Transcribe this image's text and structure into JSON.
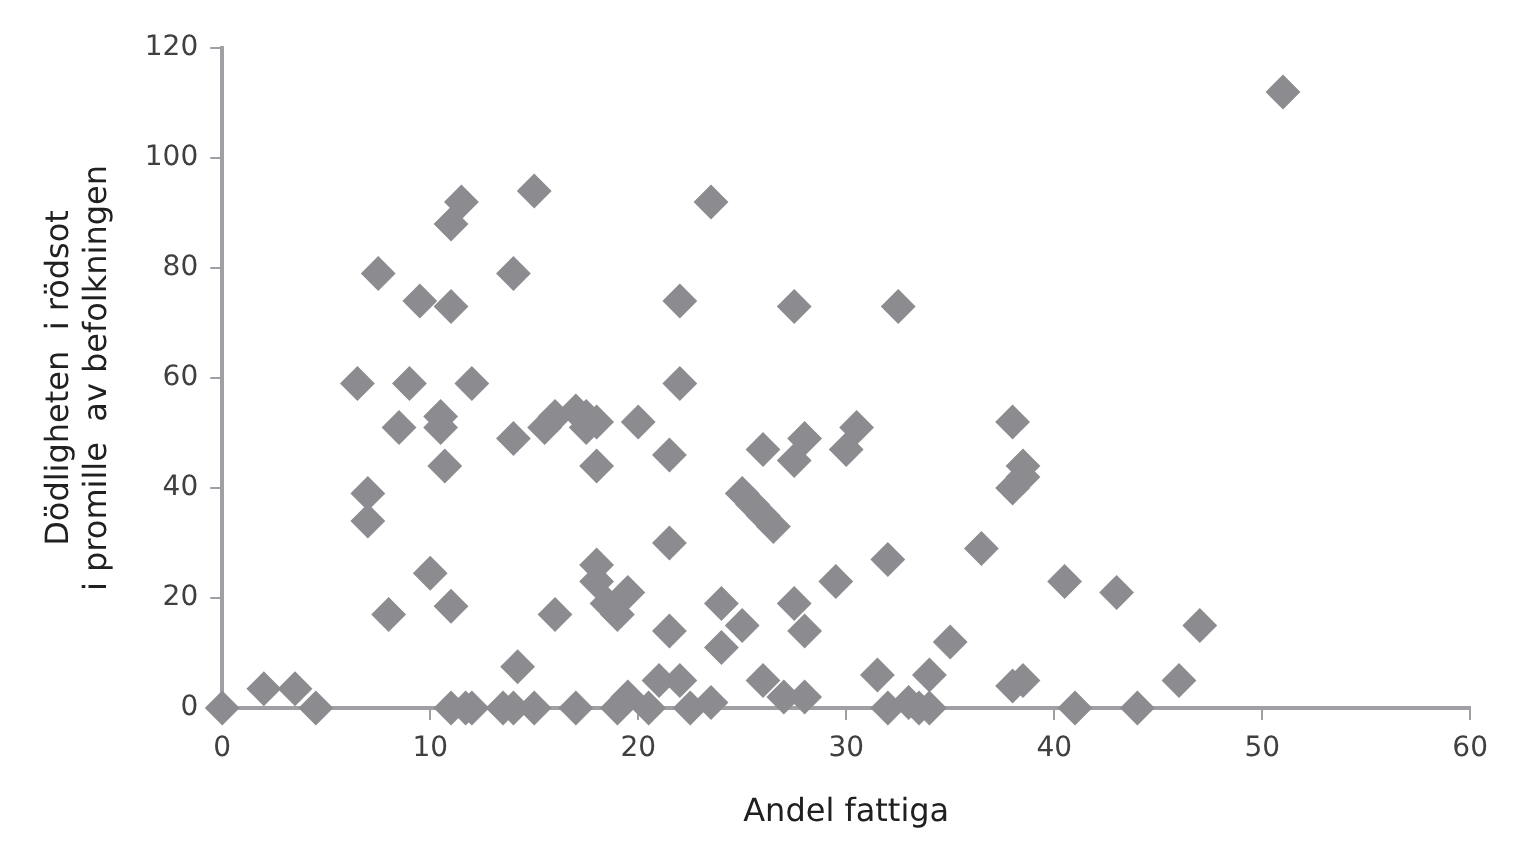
{
  "chart_data": {
    "type": "scatter",
    "xlabel": "Andel fattiga",
    "ylabel": "Dödligheten  i rödsot\ni promille  av befolkningen",
    "xlim": [
      0,
      60
    ],
    "xticks": [
      0,
      10,
      20,
      30,
      40,
      50,
      60
    ],
    "ylim": [
      0,
      120
    ],
    "yticks": [
      0,
      20,
      40,
      60,
      80,
      100,
      120
    ],
    "marker": "diamond",
    "legend": false,
    "series": [
      {
        "color": "#8c8c90",
        "x": [
          0,
          2,
          3.5,
          4.5,
          6.5,
          7,
          7,
          7.5,
          8,
          8.5,
          9,
          9.5,
          10,
          10.5,
          10.5,
          10.7,
          11,
          11,
          11,
          11,
          11.5,
          11.7,
          12,
          12,
          13.5,
          14,
          14,
          14.2,
          14,
          15,
          15,
          15.5,
          16,
          16,
          17,
          17,
          17.5,
          17.5,
          18,
          18,
          18,
          18,
          18.5,
          19,
          19,
          19.5,
          19.5,
          20,
          20.5,
          21,
          21.5,
          21.5,
          21.5,
          22,
          22,
          22,
          22.5,
          23.5,
          23.5,
          24,
          24,
          25,
          25,
          25.5,
          26,
          26,
          26,
          26.5,
          27,
          27.5,
          27.5,
          27.5,
          28,
          28,
          28,
          29.5,
          30,
          30.5,
          31.5,
          32,
          32,
          32.5,
          33,
          33.5,
          34,
          34,
          35,
          36.5,
          38,
          38,
          38,
          38.5,
          38.5,
          38.5,
          40.5,
          41,
          43,
          44,
          46,
          47,
          51
        ],
        "values": [
          0,
          3.5,
          3.5,
          0,
          59,
          39,
          34,
          79,
          17,
          51,
          59,
          74,
          24.5,
          51,
          53,
          44,
          88,
          73,
          18.5,
          0,
          92,
          0,
          59,
          0,
          0,
          79,
          49,
          7.5,
          0,
          94,
          0,
          51,
          17,
          53,
          0,
          54,
          51,
          53,
          52,
          44,
          26,
          23,
          19,
          0,
          17,
          2,
          21,
          52,
          0,
          5,
          46,
          30,
          14,
          74,
          59,
          5,
          0,
          92,
          1,
          11,
          19,
          15,
          39,
          37,
          47,
          5,
          35,
          33,
          2,
          19,
          45,
          73,
          14,
          49,
          2,
          23,
          47,
          51,
          6,
          27,
          0,
          73,
          1,
          0,
          6,
          0,
          12,
          29,
          4,
          52,
          40,
          42,
          5,
          44,
          23,
          0,
          21,
          0,
          5,
          15,
          112
        ]
      }
    ]
  }
}
